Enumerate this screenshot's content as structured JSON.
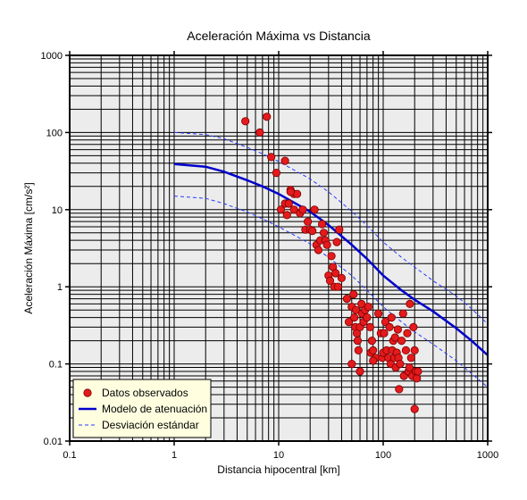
{
  "chart_data": {
    "type": "scatter",
    "title": "Aceleración Máxima vs Distancia",
    "xlabel": "Distancia hipocentral [km]",
    "ylabel": "Aceleración Máxima [cm/s²]",
    "xscale": "log",
    "yscale": "log",
    "xlim": [
      0.1,
      1000
    ],
    "ylim": [
      0.01,
      1000
    ],
    "x_ticks": [
      "0.1",
      "1",
      "10",
      "100",
      "1000"
    ],
    "y_ticks": [
      "0.01",
      "0.1",
      "1",
      "10",
      "100",
      "1000"
    ],
    "grid": true,
    "legend_position": "bottom-left",
    "colors": {
      "observed_fill": "#e41a1c",
      "observed_edge": "#7a0000",
      "model": "#0000cc",
      "std": "#2a3bff",
      "plot_background": "#ececec",
      "legend_background": "#ffffe0"
    },
    "series": [
      {
        "name": "Datos observados",
        "kind": "scatter",
        "points": [
          [
            4.8,
            140
          ],
          [
            6.6,
            100
          ],
          [
            7.7,
            160
          ],
          [
            8.5,
            48
          ],
          [
            9.5,
            30
          ],
          [
            11.5,
            43
          ],
          [
            10.5,
            10
          ],
          [
            11.5,
            12
          ],
          [
            12.5,
            12
          ],
          [
            13,
            18
          ],
          [
            14,
            16
          ],
          [
            15,
            16
          ],
          [
            12,
            8.5
          ],
          [
            14,
            10
          ],
          [
            16,
            9
          ],
          [
            17,
            10
          ],
          [
            13,
            17
          ],
          [
            18,
            5.5
          ],
          [
            19,
            7
          ],
          [
            20,
            5.5
          ],
          [
            21,
            5.3
          ],
          [
            22,
            10
          ],
          [
            23,
            3.5
          ],
          [
            24,
            3
          ],
          [
            25,
            4
          ],
          [
            26,
            6.5
          ],
          [
            27,
            5
          ],
          [
            28,
            4
          ],
          [
            29,
            3.5
          ],
          [
            30,
            1.4
          ],
          [
            31,
            1.2
          ],
          [
            32,
            2.5
          ],
          [
            33,
            1.8
          ],
          [
            34,
            1.0
          ],
          [
            35,
            1.5
          ],
          [
            36,
            3.8
          ],
          [
            37,
            1.0
          ],
          [
            38,
            5.5
          ],
          [
            40,
            1.3
          ],
          [
            45,
            0.7
          ],
          [
            47,
            0.35
          ],
          [
            50,
            0.55
          ],
          [
            52,
            0.8
          ],
          [
            53,
            0.4
          ],
          [
            54,
            0.3
          ],
          [
            55,
            0.5
          ],
          [
            56,
            0.25
          ],
          [
            57,
            0.2
          ],
          [
            58,
            0.15
          ],
          [
            60,
            0.3
          ],
          [
            62,
            0.6
          ],
          [
            63,
            0.45
          ],
          [
            65,
            0.35
          ],
          [
            67,
            0.5
          ],
          [
            70,
            0.4
          ],
          [
            72,
            0.55
          ],
          [
            75,
            0.3
          ],
          [
            76,
            0.14
          ],
          [
            78,
            0.2
          ],
          [
            80,
            0.15
          ],
          [
            85,
            0.12
          ],
          [
            90,
            0.45
          ],
          [
            95,
            0.25
          ],
          [
            98,
            0.12
          ],
          [
            100,
            0.14
          ],
          [
            102,
            0.25
          ],
          [
            105,
            0.35
          ],
          [
            108,
            0.15
          ],
          [
            112,
            0.12
          ],
          [
            115,
            0.3
          ],
          [
            118,
            0.1
          ],
          [
            120,
            0.4
          ],
          [
            122,
            0.15
          ],
          [
            125,
            0.2
          ],
          [
            128,
            0.12
          ],
          [
            130,
            0.22
          ],
          [
            132,
            0.09
          ],
          [
            135,
            0.14
          ],
          [
            138,
            0.28
          ],
          [
            140,
            0.12
          ],
          [
            142,
            0.047
          ],
          [
            145,
            0.1
          ],
          [
            150,
            0.2
          ],
          [
            155,
            0.45
          ],
          [
            158,
            0.07
          ],
          [
            165,
            0.15
          ],
          [
            170,
            0.25
          ],
          [
            175,
            0.08
          ],
          [
            178,
            0.09
          ],
          [
            180,
            0.6
          ],
          [
            185,
            0.12
          ],
          [
            190,
            0.07
          ],
          [
            195,
            0.3
          ],
          [
            200,
            0.15
          ],
          [
            205,
            0.08
          ],
          [
            210,
            0.065
          ],
          [
            215,
            0.08
          ],
          [
            50,
            0.1
          ],
          [
            60,
            0.08
          ],
          [
            80,
            0.11
          ],
          [
            200,
            0.026
          ]
        ]
      },
      {
        "name": "Modelo de atenuación",
        "kind": "line",
        "points": [
          [
            1,
            39
          ],
          [
            2,
            36
          ],
          [
            3,
            31
          ],
          [
            5,
            24
          ],
          [
            7,
            20
          ],
          [
            10,
            16
          ],
          [
            20,
            9.4
          ],
          [
            30,
            6.3
          ],
          [
            50,
            3.5
          ],
          [
            70,
            2.3
          ],
          [
            100,
            1.4
          ],
          [
            150,
            0.9
          ],
          [
            200,
            0.68
          ],
          [
            300,
            0.48
          ],
          [
            500,
            0.29
          ],
          [
            700,
            0.2
          ],
          [
            1000,
            0.13
          ]
        ]
      },
      {
        "name": "Desviación estándar",
        "kind": "dashed",
        "upper": [
          [
            1,
            100
          ],
          [
            2,
            94
          ],
          [
            3,
            83
          ],
          [
            5,
            64
          ],
          [
            7,
            53
          ],
          [
            10,
            42
          ],
          [
            20,
            25
          ],
          [
            30,
            17
          ],
          [
            50,
            9.5
          ],
          [
            70,
            6.2
          ],
          [
            100,
            3.8
          ],
          [
            150,
            2.4
          ],
          [
            200,
            1.8
          ],
          [
            300,
            1.2
          ],
          [
            500,
            0.76
          ],
          [
            700,
            0.52
          ],
          [
            1000,
            0.33
          ]
        ],
        "lower": [
          [
            1,
            15
          ],
          [
            2,
            14
          ],
          [
            3,
            12
          ],
          [
            5,
            9.3
          ],
          [
            7,
            7.6
          ],
          [
            10,
            6.0
          ],
          [
            20,
            3.6
          ],
          [
            30,
            2.4
          ],
          [
            50,
            1.4
          ],
          [
            70,
            0.9
          ],
          [
            100,
            0.55
          ],
          [
            150,
            0.35
          ],
          [
            200,
            0.26
          ],
          [
            300,
            0.18
          ],
          [
            500,
            0.11
          ],
          [
            700,
            0.075
          ],
          [
            1000,
            0.05
          ]
        ]
      }
    ]
  }
}
